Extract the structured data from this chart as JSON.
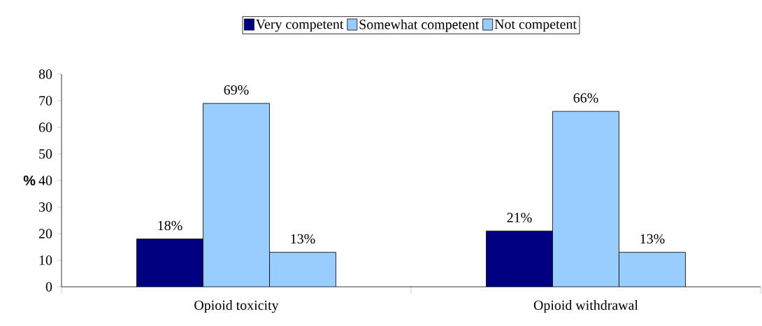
{
  "chart_data": {
    "type": "bar",
    "ylabel": "%",
    "categories": [
      "Opioid toxicity",
      "Opioid withdrawal"
    ],
    "series": [
      {
        "name": "Very competent",
        "color": "#000080",
        "values": [
          18,
          21
        ],
        "value_labels": [
          "18%",
          "21%"
        ]
      },
      {
        "name": "Somewhat competent",
        "color": "#99ccff",
        "values": [
          69,
          66
        ],
        "value_labels": [
          "69%",
          "66%"
        ]
      },
      {
        "name": "Not competent",
        "color": "#99ccff",
        "values": [
          13,
          13
        ],
        "value_labels": [
          "13%",
          "13%"
        ]
      }
    ],
    "ylim": [
      0,
      80
    ],
    "yticks": [
      0,
      10,
      20,
      30,
      40,
      50,
      60,
      70,
      80
    ],
    "legend": "top",
    "grid": false
  }
}
